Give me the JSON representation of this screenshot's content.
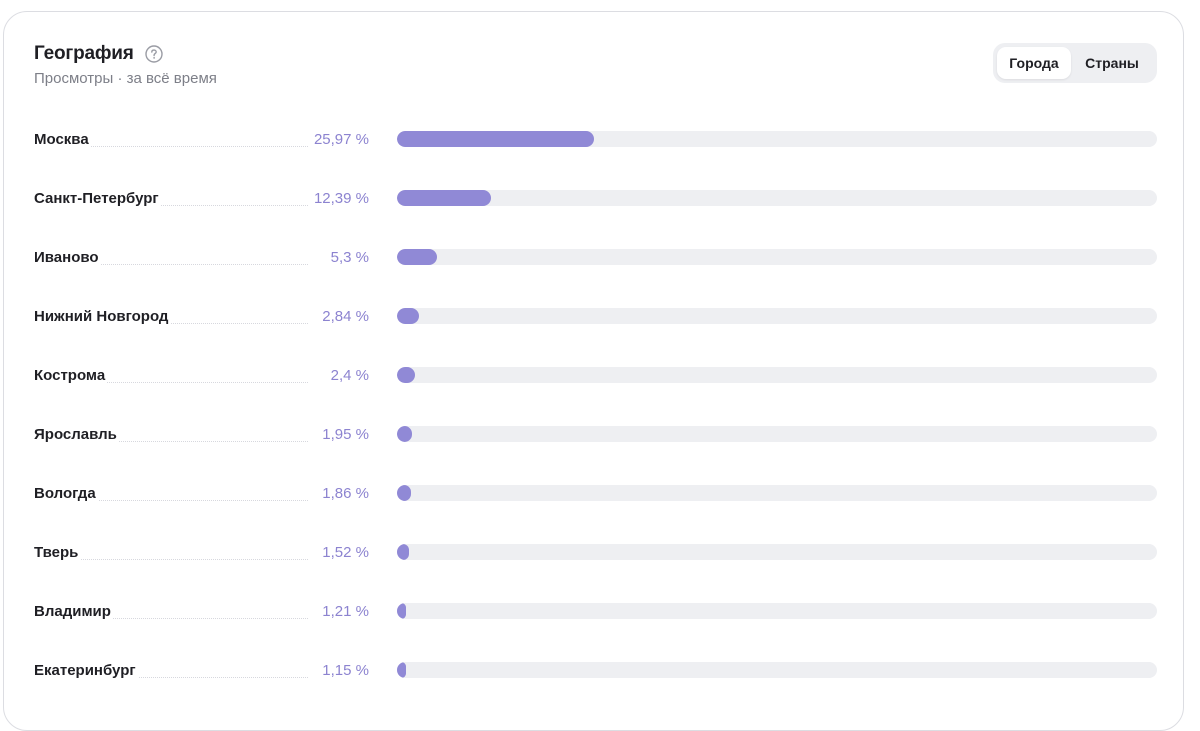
{
  "header": {
    "title": "География",
    "subtitle": "Просмотры · за всё время",
    "help_icon": "question-circle-icon"
  },
  "toggle": {
    "options": [
      {
        "label": "Города",
        "active": true
      },
      {
        "label": "Страны",
        "active": false
      }
    ]
  },
  "colors": {
    "bar_fill": "#9089d6",
    "bar_track": "#eeeff2",
    "percent_text": "#8c83d0"
  },
  "rows": [
    {
      "city": "Москва",
      "percent_label": "25,97 %",
      "value": 25.97
    },
    {
      "city": "Санкт-Петербург",
      "percent_label": "12,39 %",
      "value": 12.39
    },
    {
      "city": "Иваново",
      "percent_label": "5,3 %",
      "value": 5.3
    },
    {
      "city": "Нижний Новгород",
      "percent_label": "2,84 %",
      "value": 2.84
    },
    {
      "city": "Кострома",
      "percent_label": "2,4 %",
      "value": 2.4
    },
    {
      "city": "Ярославль",
      "percent_label": "1,95 %",
      "value": 1.95
    },
    {
      "city": "Вологда",
      "percent_label": "1,86 %",
      "value": 1.86
    },
    {
      "city": "Тверь",
      "percent_label": "1,52 %",
      "value": 1.52
    },
    {
      "city": "Владимир",
      "percent_label": "1,21 %",
      "value": 1.21
    },
    {
      "city": "Екатеринбург",
      "percent_label": "1,15 %",
      "value": 1.15
    }
  ]
}
